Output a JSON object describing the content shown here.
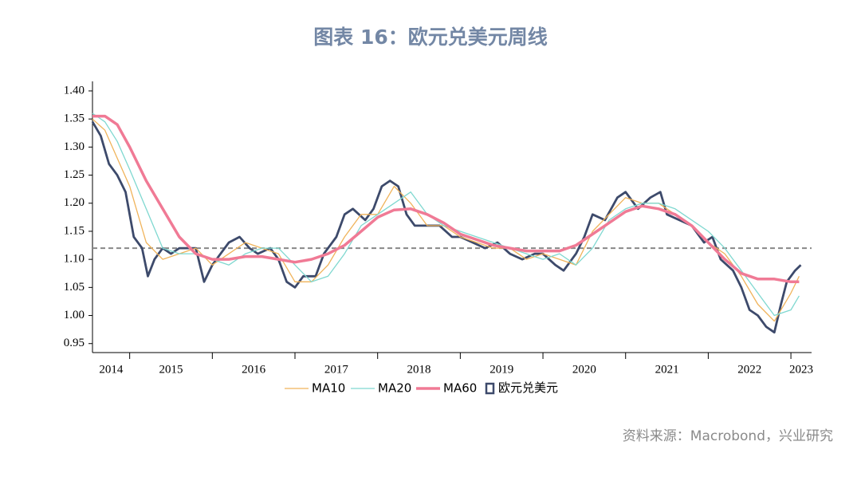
{
  "chart_data": {
    "type": "line",
    "title": "图表 16：欧元兑美元周线",
    "source": "资料来源：Macrobond，兴业研究",
    "xlim": [
      2014.55,
      2023.25
    ],
    "xticks": [
      2015,
      2016,
      2017,
      2018,
      2019,
      2020,
      2021,
      2022,
      2023
    ],
    "year_labels": [
      "2014",
      "2015",
      "2016",
      "2017",
      "2018",
      "2019",
      "2020",
      "2021",
      "2022",
      "2023"
    ],
    "ylim": [
      0.934,
      1.417
    ],
    "yticks": [
      0.95,
      {
        "value": 1.0,
        "label": "1.00"
      },
      1.05,
      {
        "value": 1.1,
        "label": "1.10"
      },
      1.15,
      {
        "value": 1.2,
        "label": "1.20"
      },
      1.25,
      {
        "value": 1.3,
        "label": "1.30"
      },
      1.35,
      {
        "value": 1.4,
        "label": "1.40"
      }
    ],
    "reference_line": 1.12,
    "series": [
      {
        "name": "MA10",
        "color": "#f0b35a",
        "x": [
          2014.55,
          2014.7,
          2014.85,
          2015.0,
          2015.2,
          2015.4,
          2015.6,
          2015.8,
          2016.0,
          2016.2,
          2016.4,
          2016.6,
          2016.8,
          2017.0,
          2017.2,
          2017.4,
          2017.6,
          2017.8,
          2018.0,
          2018.2,
          2018.4,
          2018.6,
          2018.8,
          2019.0,
          2019.2,
          2019.4,
          2019.6,
          2019.8,
          2020.0,
          2020.2,
          2020.4,
          2020.6,
          2020.8,
          2021.0,
          2021.2,
          2021.4,
          2021.6,
          2021.8,
          2022.0,
          2022.2,
          2022.4,
          2022.6,
          2022.8,
          2023.0,
          2023.1
        ],
        "values": [
          1.35,
          1.33,
          1.28,
          1.23,
          1.13,
          1.1,
          1.11,
          1.12,
          1.09,
          1.11,
          1.13,
          1.12,
          1.11,
          1.06,
          1.06,
          1.09,
          1.14,
          1.18,
          1.18,
          1.23,
          1.2,
          1.16,
          1.16,
          1.14,
          1.13,
          1.12,
          1.12,
          1.1,
          1.11,
          1.1,
          1.09,
          1.15,
          1.18,
          1.21,
          1.2,
          1.2,
          1.18,
          1.16,
          1.13,
          1.11,
          1.07,
          1.02,
          0.99,
          1.04,
          1.07
        ]
      },
      {
        "name": "MA20",
        "color": "#7fd8d0",
        "x": [
          2014.55,
          2014.7,
          2014.85,
          2015.0,
          2015.2,
          2015.4,
          2015.6,
          2015.8,
          2016.0,
          2016.2,
          2016.4,
          2016.6,
          2016.8,
          2017.0,
          2017.2,
          2017.4,
          2017.6,
          2017.8,
          2018.0,
          2018.2,
          2018.4,
          2018.6,
          2018.8,
          2019.0,
          2019.2,
          2019.4,
          2019.6,
          2019.8,
          2020.0,
          2020.2,
          2020.4,
          2020.6,
          2020.8,
          2021.0,
          2021.2,
          2021.4,
          2021.6,
          2021.8,
          2022.0,
          2022.2,
          2022.4,
          2022.6,
          2022.8,
          2023.0,
          2023.1
        ],
        "values": [
          1.36,
          1.345,
          1.31,
          1.26,
          1.19,
          1.12,
          1.11,
          1.11,
          1.1,
          1.09,
          1.11,
          1.12,
          1.12,
          1.09,
          1.06,
          1.07,
          1.11,
          1.16,
          1.18,
          1.2,
          1.22,
          1.18,
          1.16,
          1.15,
          1.14,
          1.13,
          1.12,
          1.11,
          1.1,
          1.11,
          1.09,
          1.12,
          1.17,
          1.19,
          1.2,
          1.2,
          1.19,
          1.17,
          1.15,
          1.12,
          1.08,
          1.04,
          1.0,
          1.01,
          1.035
        ]
      },
      {
        "name": "MA60",
        "color": "#f07a95",
        "x": [
          2014.55,
          2014.7,
          2014.85,
          2015.0,
          2015.2,
          2015.4,
          2015.6,
          2015.8,
          2016.0,
          2016.2,
          2016.4,
          2016.6,
          2016.8,
          2017.0,
          2017.2,
          2017.4,
          2017.6,
          2017.8,
          2018.0,
          2018.2,
          2018.4,
          2018.6,
          2018.8,
          2019.0,
          2019.2,
          2019.4,
          2019.6,
          2019.8,
          2020.0,
          2020.2,
          2020.4,
          2020.6,
          2020.8,
          2021.0,
          2021.2,
          2021.4,
          2021.6,
          2021.8,
          2022.0,
          2022.2,
          2022.4,
          2022.6,
          2022.8,
          2023.0,
          2023.1
        ],
        "values": [
          1.355,
          1.355,
          1.34,
          1.3,
          1.24,
          1.19,
          1.14,
          1.11,
          1.1,
          1.1,
          1.105,
          1.105,
          1.1,
          1.095,
          1.1,
          1.11,
          1.125,
          1.15,
          1.175,
          1.188,
          1.19,
          1.18,
          1.165,
          1.145,
          1.135,
          1.125,
          1.12,
          1.115,
          1.115,
          1.115,
          1.125,
          1.145,
          1.165,
          1.185,
          1.195,
          1.19,
          1.18,
          1.16,
          1.13,
          1.1,
          1.075,
          1.065,
          1.065,
          1.06,
          1.06
        ]
      },
      {
        "name": "欧元兑美元",
        "color": "#3d4a6b",
        "x": [
          2014.55,
          2014.65,
          2014.75,
          2014.85,
          2014.95,
          2015.05,
          2015.15,
          2015.22,
          2015.3,
          2015.4,
          2015.5,
          2015.6,
          2015.68,
          2015.8,
          2015.9,
          2016.0,
          2016.1,
          2016.2,
          2016.33,
          2016.45,
          2016.55,
          2016.7,
          2016.8,
          2016.9,
          2017.0,
          2017.1,
          2017.25,
          2017.35,
          2017.5,
          2017.6,
          2017.7,
          2017.85,
          2017.95,
          2018.05,
          2018.15,
          2018.25,
          2018.35,
          2018.45,
          2018.6,
          2018.75,
          2018.9,
          2019.0,
          2019.15,
          2019.3,
          2019.45,
          2019.6,
          2019.75,
          2019.9,
          2020.0,
          2020.15,
          2020.25,
          2020.4,
          2020.5,
          2020.6,
          2020.75,
          2020.9,
          2021.0,
          2021.15,
          2021.3,
          2021.42,
          2021.5,
          2021.65,
          2021.8,
          2021.95,
          2022.05,
          2022.15,
          2022.3,
          2022.4,
          2022.5,
          2022.6,
          2022.7,
          2022.8,
          2022.88,
          2022.95,
          2023.05,
          2023.12
        ],
        "values": [
          1.345,
          1.32,
          1.27,
          1.25,
          1.22,
          1.14,
          1.12,
          1.07,
          1.1,
          1.12,
          1.11,
          1.12,
          1.12,
          1.12,
          1.06,
          1.09,
          1.11,
          1.13,
          1.14,
          1.12,
          1.11,
          1.12,
          1.1,
          1.06,
          1.05,
          1.07,
          1.07,
          1.11,
          1.14,
          1.18,
          1.19,
          1.17,
          1.19,
          1.23,
          1.24,
          1.23,
          1.18,
          1.16,
          1.16,
          1.16,
          1.14,
          1.14,
          1.13,
          1.12,
          1.13,
          1.11,
          1.1,
          1.11,
          1.11,
          1.09,
          1.08,
          1.11,
          1.14,
          1.18,
          1.17,
          1.21,
          1.22,
          1.19,
          1.21,
          1.22,
          1.18,
          1.17,
          1.16,
          1.13,
          1.14,
          1.1,
          1.08,
          1.05,
          1.01,
          1.0,
          0.98,
          0.97,
          1.02,
          1.06,
          1.08,
          1.09
        ]
      }
    ]
  }
}
